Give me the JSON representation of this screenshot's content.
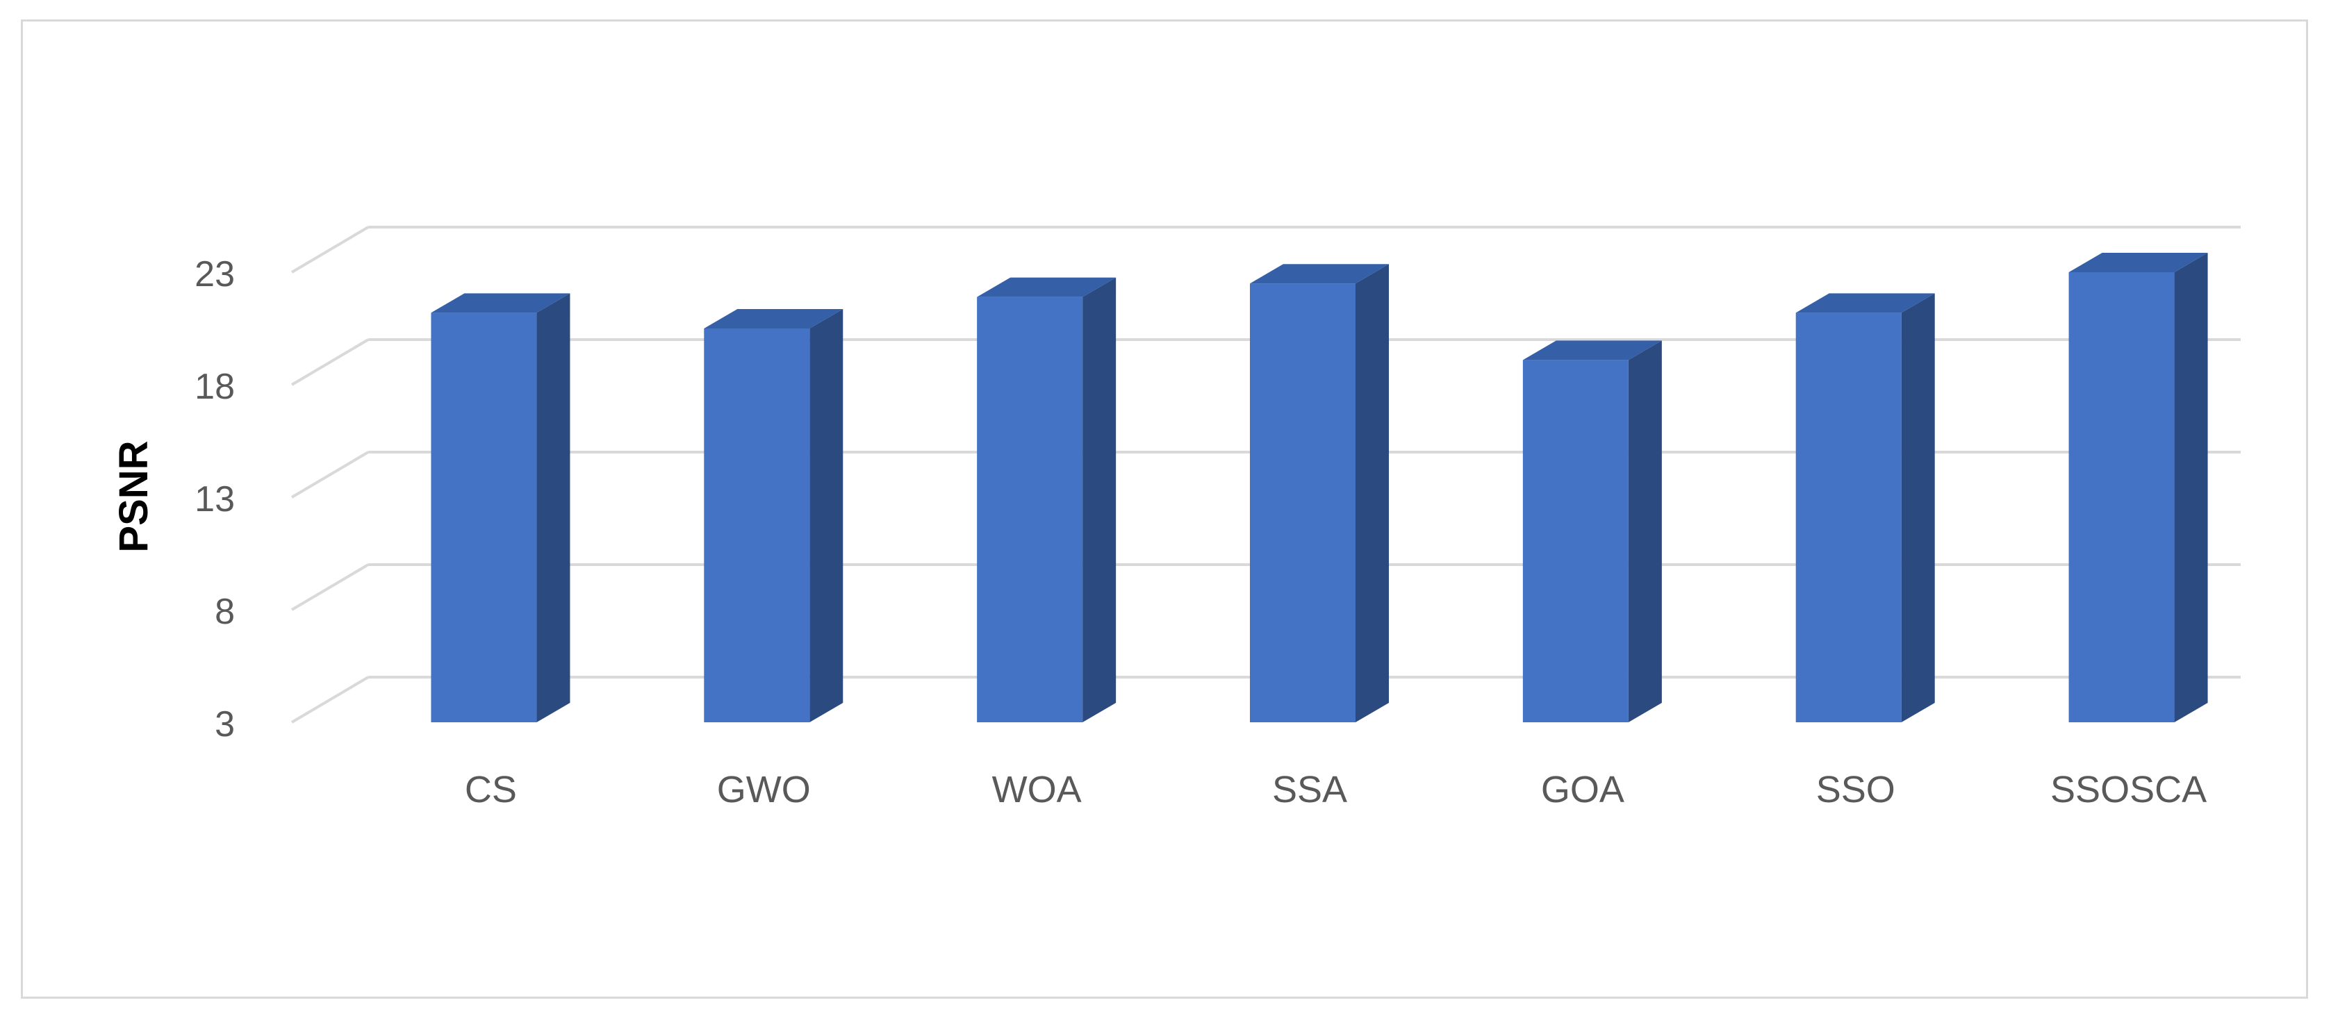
{
  "chart_data": {
    "type": "bar",
    "style": "3d-column",
    "title": "",
    "xlabel": "",
    "ylabel": "PSNR",
    "categories": [
      "CS",
      "GWO",
      "WOA",
      "SSA",
      "GOA",
      "SSO",
      "SSOSCA"
    ],
    "values": [
      21.2,
      20.5,
      21.9,
      22.5,
      19.1,
      21.2,
      23.0
    ],
    "yticks": [
      "3",
      "8",
      "13",
      "18",
      "23"
    ],
    "ylim": [
      3,
      28
    ],
    "grid": true,
    "legend": "none",
    "colors": {
      "bar_front": "#4472C4",
      "bar_side": "#2A4A80",
      "bar_top": "#3560A8",
      "grid": "#d9d9d9",
      "tick_text": "#595959"
    }
  }
}
